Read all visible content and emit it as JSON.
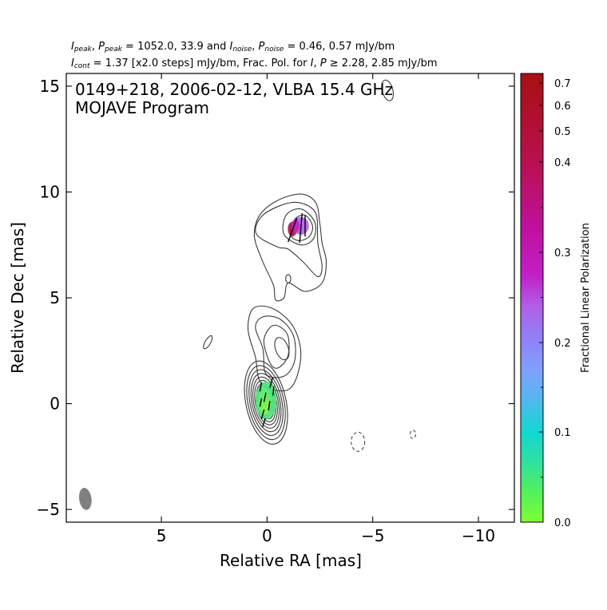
{
  "header": {
    "line1": {
      "i_peak": "I",
      "i_peak_sub": "peak",
      "sep1": ", ",
      "p_peak": "P",
      "p_peak_sub": "peak",
      "eq1": " = 1052.0, 33.9 and ",
      "i_noise": "I",
      "i_noise_sub": "noise",
      "sep2": ", ",
      "p_noise": "P",
      "p_noise_sub": "noise",
      "eq2": " = 0.46, 0.57 mJy/bm"
    },
    "line2": {
      "i_cont": "I",
      "i_cont_sub": "cont",
      "text_a": " = 1.37 [x2.0 steps] mJy/bm, Frac. Pol. for ",
      "i_sym": "I",
      "comma": ", ",
      "p_sym": "P",
      "text_b": " ≥ 2.28, 2.85 mJy/bm"
    }
  },
  "plot_title_line1": "0149+218, 2006-02-12, VLBA 15.4 GHz",
  "plot_title_line2": "MOJAVE Program",
  "colorbar_label": "Fractional Linear Polarization",
  "chart_data": {
    "type": "contour",
    "xlabel": "Relative RA [mas]",
    "ylabel": "Relative Dec [mas]",
    "xlim": [
      9.5,
      -11.7
    ],
    "ylim": [
      -5.6,
      15.6
    ],
    "x_ticks": [
      5,
      0,
      -5,
      -10
    ],
    "x_tick_labels": [
      "5",
      "0",
      "−5",
      "−10"
    ],
    "y_ticks": [
      -5,
      0,
      5,
      10,
      15
    ],
    "y_tick_labels": [
      "−5",
      "0",
      "5",
      "10",
      "15"
    ],
    "colorbar": {
      "range": [
        0.0,
        0.74
      ],
      "ticks": [
        0.0,
        0.1,
        0.2,
        0.3,
        0.4,
        0.5,
        0.6,
        0.7
      ],
      "tick_labels": [
        "0.0",
        "0.1",
        "0.2",
        "0.3",
        "0.4",
        "0.5",
        "0.6",
        "0.7"
      ]
    },
    "beam": {
      "x": 8.6,
      "y": -4.5,
      "major_mas": 1.05,
      "minor_mas": 0.58,
      "pa_deg": -8,
      "color": "#808080"
    },
    "core": {
      "x": 0.05,
      "y": 0.05,
      "pa_deg": -12,
      "contours": [
        [
          0.95,
          2.0
        ],
        [
          0.85,
          1.78
        ],
        [
          0.75,
          1.58
        ],
        [
          0.66,
          1.4
        ],
        [
          0.58,
          1.23
        ],
        [
          0.5,
          1.07
        ],
        [
          0.42,
          0.92
        ],
        [
          0.35,
          0.78
        ],
        [
          0.28,
          0.64
        ],
        [
          0.22,
          0.5
        ],
        [
          0.16,
          0.37
        ],
        [
          0.1,
          0.24
        ]
      ]
    },
    "jet_contours": [
      {
        "type": "ellipse",
        "x": -0.7,
        "y": 2.6,
        "rx": 0.3,
        "ry": 0.55,
        "pa_deg": -20
      },
      {
        "type": "ellipse",
        "x": 2.8,
        "y": 2.9,
        "rx": 0.13,
        "ry": 0.35,
        "pa_deg": 30
      },
      {
        "type": "ellipse",
        "x": -5.7,
        "y": 14.8,
        "rx": 0.25,
        "ry": 0.5,
        "pa_deg": -15
      },
      {
        "type": "ellipse",
        "x": -1.0,
        "y": 5.9,
        "rx": 0.12,
        "ry": 0.2,
        "pa_deg": 0
      }
    ],
    "negative_contours": [
      {
        "x": -4.3,
        "y": -1.8,
        "rx": 0.32,
        "ry": 0.45,
        "pa_deg": 0
      },
      {
        "x": -6.9,
        "y": -1.45,
        "rx": 0.13,
        "ry": 0.2,
        "pa_deg": 0
      }
    ],
    "jet_polygons": [
      [
        [
          0.3,
          1.0
        ],
        [
          0.55,
          2.2
        ],
        [
          0.9,
          3.5
        ],
        [
          0.65,
          4.5
        ],
        [
          -0.25,
          4.5
        ],
        [
          -1.2,
          3.7
        ],
        [
          -1.6,
          2.4
        ],
        [
          -1.3,
          1.0
        ],
        [
          -0.7,
          0.6
        ]
      ],
      [
        [
          0.05,
          1.4
        ],
        [
          0.2,
          2.6
        ],
        [
          0.55,
          3.6
        ],
        [
          0.2,
          4.1
        ],
        [
          -0.6,
          4.0
        ],
        [
          -1.25,
          3.2
        ],
        [
          -1.3,
          2.0
        ],
        [
          -0.8,
          1.3
        ]
      ],
      [
        [
          -0.15,
          1.9
        ],
        [
          0.15,
          3.0
        ],
        [
          -0.3,
          3.7
        ],
        [
          -0.95,
          3.3
        ],
        [
          -1.0,
          2.3
        ],
        [
          -0.55,
          1.7
        ]
      ],
      [
        [
          -0.3,
          5.6
        ],
        [
          0.2,
          6.7
        ],
        [
          0.6,
          7.9
        ],
        [
          0.35,
          8.9
        ],
        [
          -0.5,
          9.6
        ],
        [
          -1.6,
          9.9
        ],
        [
          -2.3,
          9.5
        ],
        [
          -2.5,
          8.5
        ],
        [
          -2.6,
          7.6
        ],
        [
          -2.8,
          6.7
        ],
        [
          -2.6,
          5.7
        ],
        [
          -1.8,
          5.3
        ],
        [
          -1.0,
          5.7
        ],
        [
          -0.8,
          5.0
        ],
        [
          -0.4,
          4.9
        ]
      ],
      [
        [
          -0.5,
          7.4
        ],
        [
          0.5,
          8.0
        ],
        [
          0.3,
          8.8
        ],
        [
          -0.6,
          9.35
        ],
        [
          -1.5,
          9.5
        ],
        [
          -2.3,
          9.0
        ],
        [
          -2.4,
          7.6
        ],
        [
          -2.6,
          6.5
        ],
        [
          -2.4,
          6.0
        ],
        [
          -1.7,
          6.7
        ],
        [
          -1.0,
          7.3
        ]
      ],
      [
        [
          -0.8,
          8.0
        ],
        [
          -0.9,
          8.9
        ],
        [
          -1.6,
          9.2
        ],
        [
          -2.25,
          8.6
        ],
        [
          -2.2,
          7.8
        ],
        [
          -1.6,
          7.5
        ]
      ],
      [
        [
          -1.1,
          8.0
        ],
        [
          -1.3,
          8.7
        ],
        [
          -1.8,
          8.9
        ],
        [
          -2.15,
          8.4
        ],
        [
          -2.0,
          7.9
        ],
        [
          -1.5,
          7.7
        ]
      ]
    ],
    "polarization_patches": [
      {
        "x": -1.2,
        "y": 8.25,
        "rx": 0.22,
        "ry": 0.35,
        "color": "#b0104a"
      },
      {
        "x": -1.6,
        "y": 8.4,
        "rx": 0.38,
        "ry": 0.42,
        "color": "#b060e8"
      },
      {
        "x": -1.35,
        "y": 8.4,
        "rx": 0.2,
        "ry": 0.3,
        "color": "#c020c0"
      },
      {
        "x": 0.05,
        "y": 0.15,
        "rx": 0.5,
        "ry": 0.9,
        "color": "#50e880"
      },
      {
        "x": 0.1,
        "y": 0.1,
        "rx": 0.32,
        "ry": 0.6,
        "color": "#60ee70"
      },
      {
        "x": 0.1,
        "y": -0.1,
        "rx": 0.22,
        "ry": 0.4,
        "color": "#80f050"
      }
    ],
    "evpa_vectors": [
      {
        "x": -1.2,
        "y": 8.2,
        "len": 1.2,
        "angle_deg": 20
      },
      {
        "x": -1.6,
        "y": 8.3,
        "len": 1.4,
        "angle_deg": 5
      },
      {
        "x": -1.8,
        "y": 8.4,
        "len": 1.0,
        "angle_deg": 0
      },
      {
        "x": -0.2,
        "y": 1.0,
        "len": 0.5,
        "angle_deg": 15
      },
      {
        "x": 0.3,
        "y": 0.8,
        "len": 0.45,
        "angle_deg": 10
      },
      {
        "x": -0.3,
        "y": 0.6,
        "len": 0.45,
        "angle_deg": 5
      },
      {
        "x": 0.1,
        "y": 0.3,
        "len": 0.45,
        "angle_deg": 12
      },
      {
        "x": -0.1,
        "y": -0.1,
        "len": 0.45,
        "angle_deg": 8
      },
      {
        "x": 0.2,
        "y": -0.5,
        "len": 0.45,
        "angle_deg": 15
      },
      {
        "x": 0.15,
        "y": -0.9,
        "len": 0.45,
        "angle_deg": 18
      },
      {
        "x": 0.3,
        "y": 0.05,
        "len": 0.4,
        "angle_deg": 10
      }
    ]
  }
}
